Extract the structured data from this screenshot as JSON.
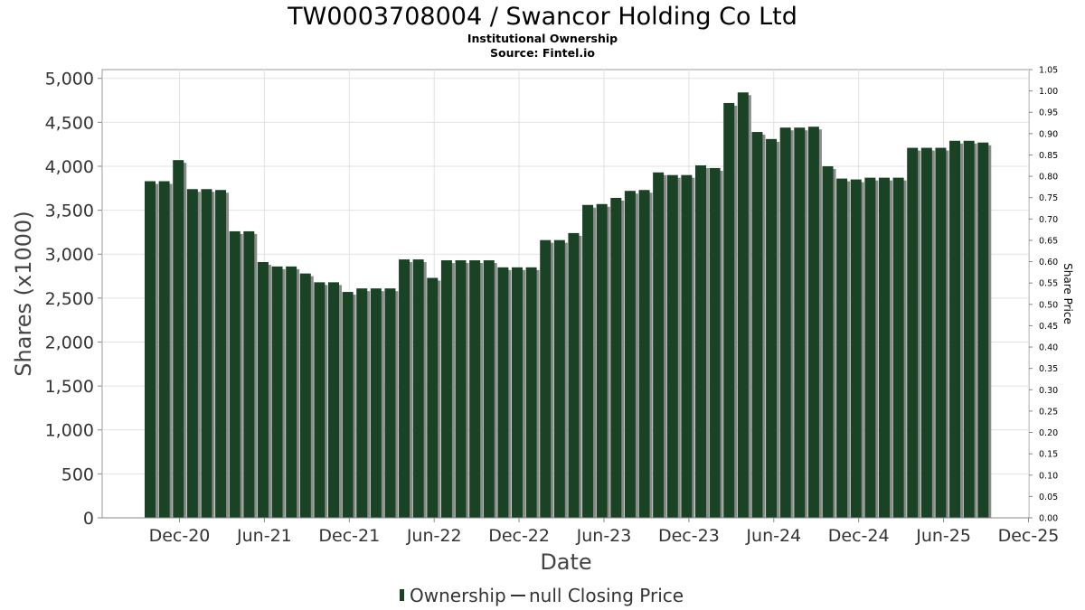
{
  "chart_data": {
    "type": "bar",
    "title": "TW0003708004 / Swancor Holding Co Ltd",
    "subtitle": "Institutional Ownership",
    "source": "Source: Fintel.io",
    "xlabel": "Date",
    "ylabel": "Shares (x1000)",
    "y2label": "Share Price",
    "ylim": [
      0,
      5100
    ],
    "y2lim": [
      0,
      1.05
    ],
    "grid": true,
    "legend_position": "bottom",
    "y_ticks": [
      "0",
      "500",
      "1,000",
      "1,500",
      "2,000",
      "2,500",
      "3,000",
      "3,500",
      "4,000",
      "4,500",
      "5,000"
    ],
    "y2_ticks": [
      "0.00",
      "0.05",
      "0.10",
      "0.15",
      "0.20",
      "0.25",
      "0.30",
      "0.35",
      "0.40",
      "0.45",
      "0.50",
      "0.55",
      "0.60",
      "0.65",
      "0.70",
      "0.75",
      "0.80",
      "0.85",
      "0.90",
      "0.95",
      "1.00",
      "1.05"
    ],
    "x_ticks": [
      "Dec-20",
      "Jun-21",
      "Dec-21",
      "Jun-22",
      "Dec-22",
      "Jun-23",
      "Dec-23",
      "Jun-24",
      "Dec-24",
      "Jun-25",
      "Dec-25"
    ],
    "series": [
      {
        "name": "Ownership",
        "color": "#1a4224",
        "values": [
          3830,
          3830,
          4070,
          3740,
          3740,
          3730,
          3260,
          3260,
          2910,
          2860,
          2860,
          2780,
          2680,
          2680,
          2570,
          2610,
          2610,
          2610,
          2940,
          2940,
          2730,
          2930,
          2930,
          2930,
          2930,
          2850,
          2850,
          2850,
          3160,
          3160,
          3240,
          3560,
          3570,
          3640,
          3720,
          3730,
          3930,
          3900,
          3900,
          4010,
          3980,
          4720,
          4840,
          4390,
          4310,
          4440,
          4440,
          4450,
          4000,
          3860,
          3850,
          3870,
          3870,
          3870,
          4210,
          4210,
          4210,
          4290,
          4290,
          4270
        ]
      },
      {
        "name": "null Closing Price",
        "color": "#333333",
        "values": []
      }
    ]
  }
}
